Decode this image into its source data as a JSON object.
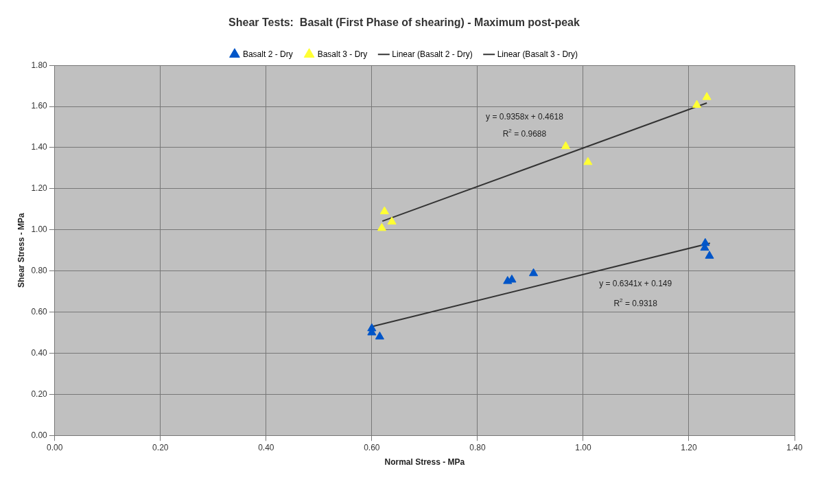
{
  "chart_data": {
    "type": "scatter",
    "title": "Shear Tests:  Basalt (First Phase of shearing) - Maximum post-peak",
    "xlabel": "Normal Stress - MPa",
    "ylabel": "Shear Stress - MPa",
    "series": [
      {
        "name": "Basalt 2 - Dry",
        "color": "#0055c8",
        "marker": "triangle",
        "x": [
          0.6,
          0.6,
          0.615,
          0.857,
          0.865,
          0.906,
          1.231,
          1.23,
          1.239
        ],
        "values": [
          0.52,
          0.5,
          0.48,
          0.75,
          0.757,
          0.788,
          0.935,
          0.912,
          0.873
        ]
      },
      {
        "name": "Basalt 3 - Dry",
        "color": "#ffff33",
        "marker": "triangle",
        "x": [
          0.624,
          0.619,
          0.638,
          0.967,
          1.009,
          1.215,
          1.234
        ],
        "values": [
          1.089,
          1.008,
          1.039,
          1.406,
          1.329,
          1.607,
          1.645
        ]
      },
      {
        "name": "Linear (Basalt 2 - Dry)",
        "type": "line",
        "color": "#333333",
        "marker": "none",
        "x": [
          0.6,
          1.24
        ],
        "values": [
          0.529,
          0.935
        ]
      },
      {
        "name": "Linear (Basalt 3 - Dry)",
        "type": "line",
        "color": "#333333",
        "marker": "none",
        "x": [
          0.62,
          1.234
        ],
        "values": [
          1.042,
          1.617
        ]
      }
    ],
    "xlim": [
      0,
      1.4
    ],
    "xticks": [
      {
        "value": 0,
        "label": "0.00"
      },
      {
        "value": 0.2,
        "label": "0.20"
      },
      {
        "value": 0.4,
        "label": "0.40"
      },
      {
        "value": 0.6,
        "label": "0.60"
      },
      {
        "value": 0.8,
        "label": "0.80"
      },
      {
        "value": 1,
        "label": "1.00"
      },
      {
        "value": 1.2,
        "label": "1.20"
      },
      {
        "value": 1.4,
        "label": "1.40"
      }
    ],
    "ylim": [
      0,
      1.8
    ],
    "yticks": [
      {
        "value": 0,
        "label": "0.00"
      },
      {
        "value": 0.2,
        "label": "0.20"
      },
      {
        "value": 0.4,
        "label": "0.40"
      },
      {
        "value": 0.6,
        "label": "0.60"
      },
      {
        "value": 0.8,
        "label": "0.80"
      },
      {
        "value": 1,
        "label": "1.00"
      },
      {
        "value": 1.2,
        "label": "1.20"
      },
      {
        "value": 1.4,
        "label": "1.40"
      },
      {
        "value": 1.6,
        "label": "1.60"
      },
      {
        "value": 1.8,
        "label": "1.80"
      }
    ],
    "grid": true,
    "legend": "top",
    "annotations": [
      "y = 0.9358x + 0.4618",
      "R$^{2}$ = 0.9688",
      "y = 0.6341x + 0.149",
      "R$^{2}$ = 0.9318"
    ]
  }
}
